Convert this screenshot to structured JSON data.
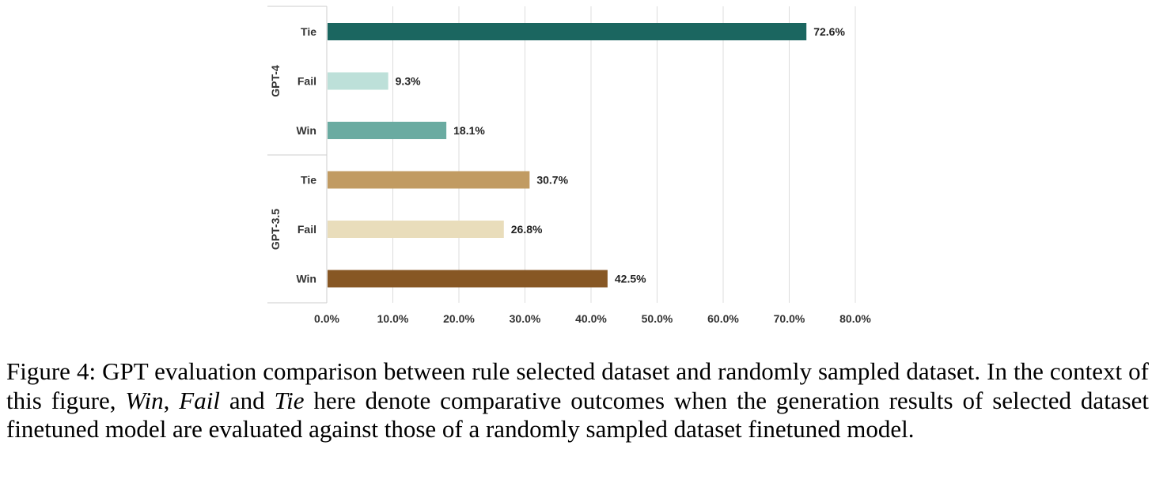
{
  "chart_data": {
    "type": "bar",
    "orientation": "horizontal",
    "groups": [
      {
        "name": "GPT-4",
        "bars": [
          {
            "label": "Tie",
            "value": 72.6,
            "value_label": "72.6%",
            "color": "#1b6660"
          },
          {
            "label": "Fail",
            "value": 9.3,
            "value_label": "9.3%",
            "color": "#bde0d9"
          },
          {
            "label": "Win",
            "value": 18.1,
            "value_label": "18.1%",
            "color": "#6aaba1"
          }
        ]
      },
      {
        "name": "GPT-3.5",
        "bars": [
          {
            "label": "Tie",
            "value": 30.7,
            "value_label": "30.7%",
            "color": "#c19b62"
          },
          {
            "label": "Fail",
            "value": 26.8,
            "value_label": "26.8%",
            "color": "#e9ddbb"
          },
          {
            "label": "Win",
            "value": 42.5,
            "value_label": "42.5%",
            "color": "#875724"
          }
        ]
      }
    ],
    "xlim": [
      0,
      80
    ],
    "xticks": [
      0,
      10,
      20,
      30,
      40,
      50,
      60,
      70,
      80
    ],
    "xtick_labels": [
      "0.0%",
      "10.0%",
      "20.0%",
      "30.0%",
      "40.0%",
      "50.0%",
      "60.0%",
      "70.0%",
      "80.0%"
    ],
    "grid": "vertical",
    "legend": "none"
  },
  "caption": {
    "prefix": "Figure 4: GPT evaluation comparison between rule selected dataset and randomly sampled dataset. In the context of this figure, ",
    "term_win": "Win",
    "sep1": ", ",
    "term_fail": "Fail",
    "sep2": " and ",
    "term_tie": "Tie",
    "suffix": " here denote comparative outcomes when the generation results of selected dataset finetuned model are evaluated against those of a randomly sampled dataset finetuned model."
  }
}
